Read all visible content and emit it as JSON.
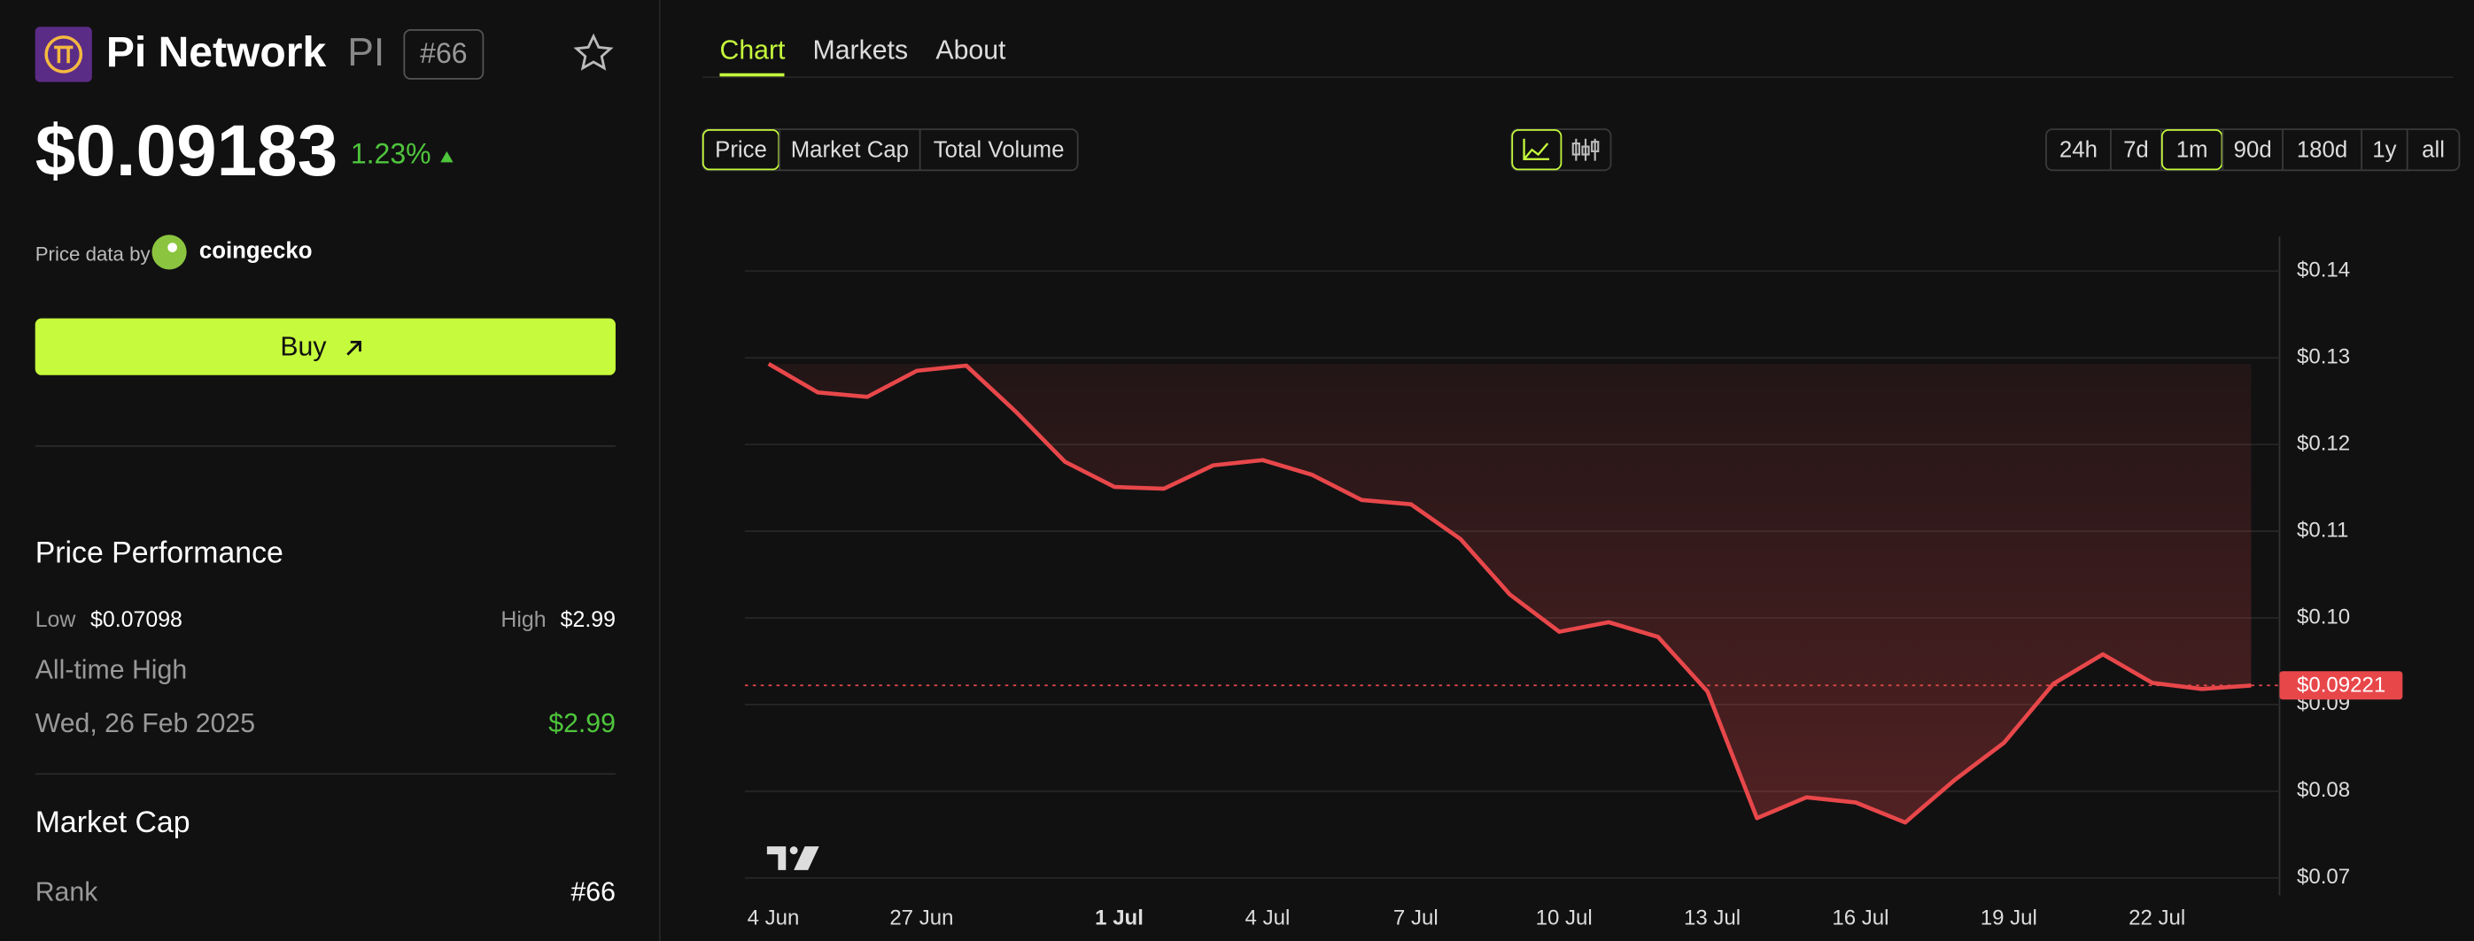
{
  "header": {
    "name": "Pi Network",
    "symbol": "PI",
    "rank_badge": "#66",
    "price": "$0.09183",
    "change": "1.23%",
    "source_prefix": "Price data by",
    "source": "coingecko",
    "buy": "Buy"
  },
  "performance": {
    "title": "Price Performance",
    "low_label": "Low",
    "low": "$0.07098",
    "high_label": "High",
    "high": "$2.99",
    "ath_label": "All-time High",
    "ath_date": "Wed, 26 Feb 2025",
    "ath": "$2.99"
  },
  "market_cap": {
    "title": "Market Cap",
    "rank_label": "Rank",
    "rank": "#66"
  },
  "tabs": [
    "Chart",
    "Markets",
    "About"
  ],
  "metric_buttons": [
    "Price",
    "Market Cap",
    "Total Volume"
  ],
  "range_buttons": [
    "24h",
    "7d",
    "1m",
    "90d",
    "180d",
    "1y",
    "all"
  ],
  "chart_data": {
    "type": "line",
    "color": "#e8474a",
    "categories": [
      "4 Jun",
      null,
      null,
      "27 Jun",
      null,
      null,
      null,
      "1 Jul",
      null,
      null,
      "4 Jul",
      null,
      null,
      "7 Jul",
      null,
      null,
      "10 Jul",
      null,
      null,
      "13 Jul",
      null,
      null,
      "16 Jul",
      null,
      null,
      "19 Jul",
      null,
      null,
      "22 Jul",
      null,
      null
    ],
    "values": [
      0.1293,
      0.126,
      0.1255,
      0.1285,
      0.1291,
      0.1238,
      0.118,
      0.1151,
      0.1149,
      0.1176,
      0.1182,
      0.1165,
      0.1136,
      0.1131,
      0.1091,
      0.1027,
      0.0984,
      0.0995,
      0.0978,
      0.0915,
      0.0769,
      0.0793,
      0.0787,
      0.0764,
      0.0813,
      0.0856,
      0.0924,
      0.0958,
      0.0925,
      0.0918,
      0.0922
    ],
    "ylim": [
      0.068,
      0.144
    ],
    "yticks": [
      {
        "value": 0.07,
        "label": "$0.07"
      },
      {
        "value": 0.08,
        "label": "$0.08"
      },
      {
        "value": 0.09,
        "label": "$0.09"
      },
      {
        "value": 0.1,
        "label": "$0.10"
      },
      {
        "value": 0.11,
        "label": "$0.11"
      },
      {
        "value": 0.12,
        "label": "$0.12"
      },
      {
        "value": 0.13,
        "label": "$0.13"
      },
      {
        "value": 0.14,
        "label": "$0.14"
      }
    ],
    "grid": true,
    "current_price": {
      "value": 0.09221,
      "label": "$0.09221"
    }
  }
}
